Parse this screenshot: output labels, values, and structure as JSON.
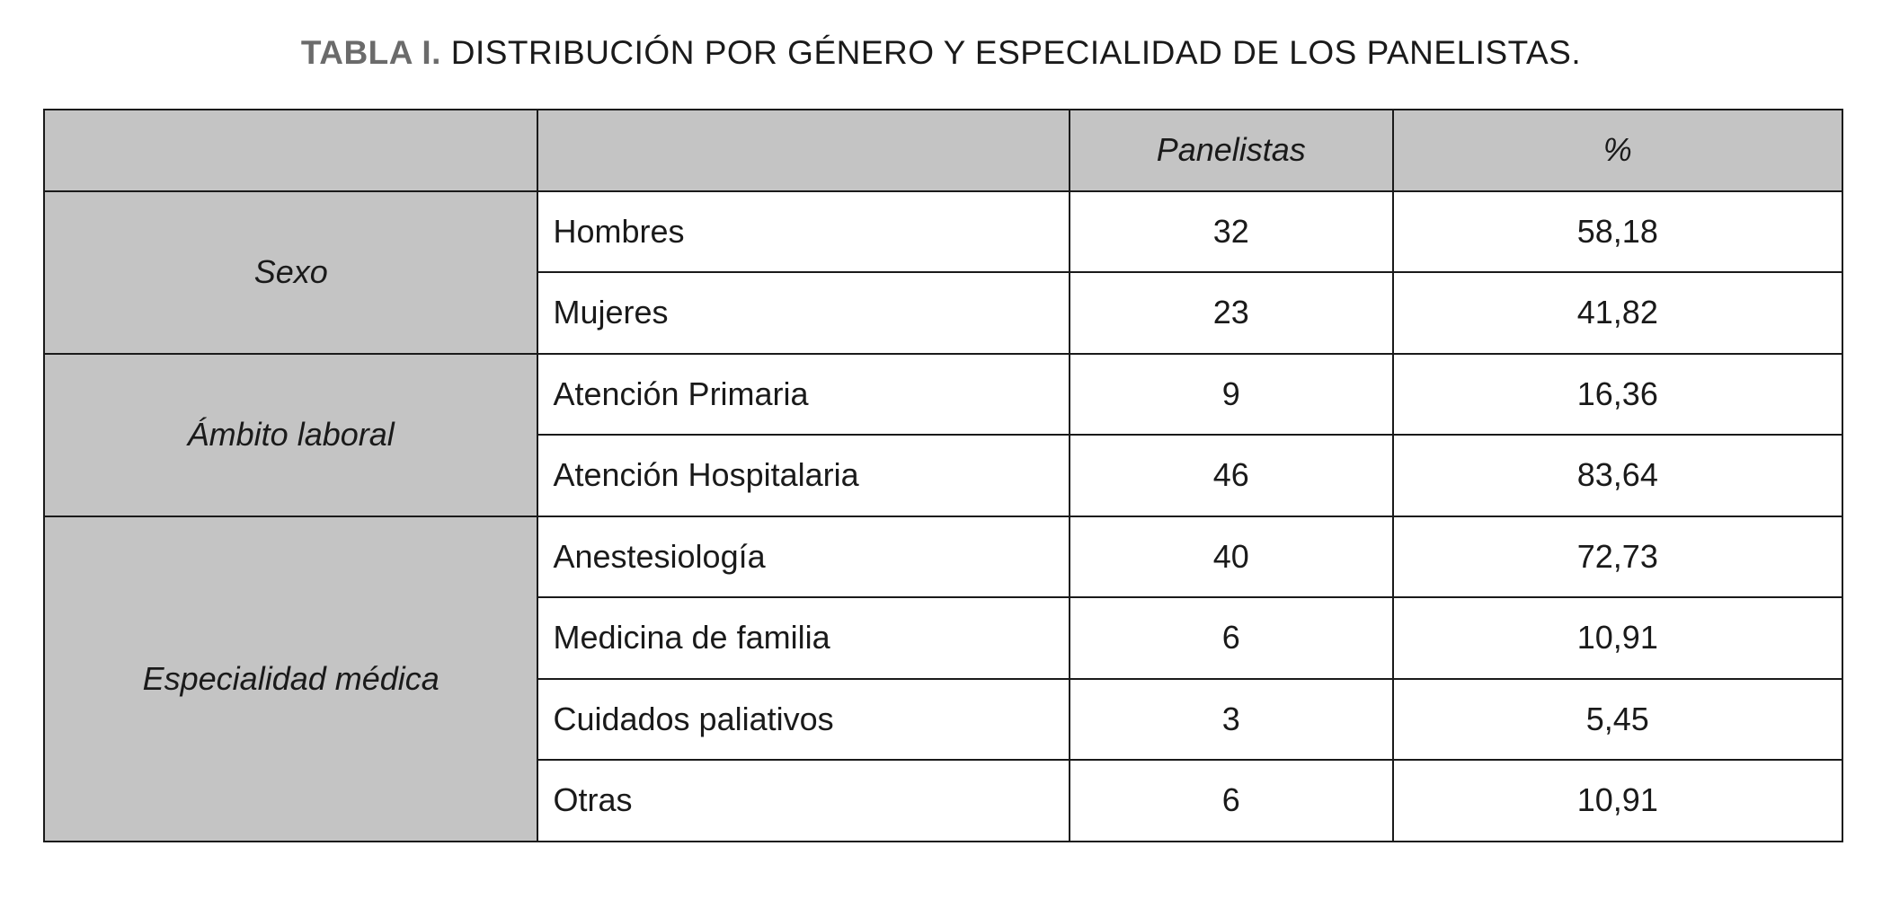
{
  "title": {
    "label": "TABLA I.",
    "text": "DISTRIBUCIÓN POR GÉNERO Y ESPECIALIDAD DE LOS PANELISTAS."
  },
  "table": {
    "headers": [
      "",
      "",
      "Panelistas",
      "%"
    ],
    "groups": [
      {
        "name": "Sexo",
        "rows": [
          {
            "label": "Hombres",
            "n": "32",
            "pct": "58,18"
          },
          {
            "label": "Mujeres",
            "n": "23",
            "pct": "41,82"
          }
        ]
      },
      {
        "name": "Ámbito laboral",
        "rows": [
          {
            "label": "Atención Primaria",
            "n": "9",
            "pct": "16,36"
          },
          {
            "label": "Atención Hospitalaria",
            "n": "46",
            "pct": "83,64"
          }
        ]
      },
      {
        "name": "Especialidad médica",
        "rows": [
          {
            "label": "Anestesiología",
            "n": "40",
            "pct": "72,73"
          },
          {
            "label": "Medicina de familia",
            "n": "6",
            "pct": "10,91"
          },
          {
            "label": "Cuidados paliativos",
            "n": "3",
            "pct": "5,45"
          },
          {
            "label": "Otras",
            "n": "6",
            "pct": "10,91"
          }
        ]
      }
    ]
  }
}
